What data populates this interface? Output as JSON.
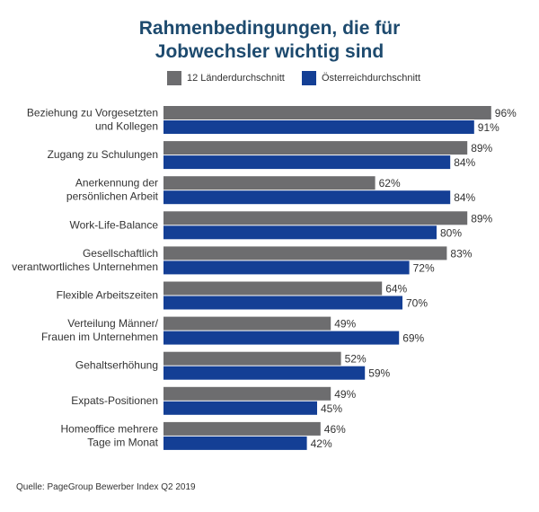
{
  "title_line1": "Rahmenbedingungen, die für",
  "title_line2": "Jobwechsler wichtig sind",
  "source": "Quelle: PageGroup Bewerber Index Q2 2019",
  "colors": {
    "series1": "#6d6d6f",
    "series2": "#143f95",
    "title": "#1d4a6e",
    "text": "#333333"
  },
  "chart_data": {
    "type": "bar",
    "orientation": "horizontal",
    "categories": [
      [
        "Beziehung zu Vorgesetzten",
        "und Kollegen"
      ],
      [
        "Zugang zu Schulungen"
      ],
      [
        "Anerkennung der",
        "persönlichen Arbeit"
      ],
      [
        "Work-Life-Balance"
      ],
      [
        "Gesellschaftlich",
        "verantwortliches Unternehmen"
      ],
      [
        "Flexible  Arbeitszeiten"
      ],
      [
        "Verteilung Männer/",
        "Frauen im Unternehmen"
      ],
      [
        "Gehaltserhöhung"
      ],
      [
        "Expats-Positionen"
      ],
      [
        "Homeoffice mehrere",
        "Tage im Monat"
      ]
    ],
    "series": [
      {
        "name": "12 Länderdurchschnitt",
        "values": [
          96,
          89,
          62,
          89,
          83,
          64,
          49,
          52,
          49,
          46
        ],
        "labels": [
          "96%",
          "89%",
          "62%",
          "89%",
          "83%",
          "64%",
          "49%",
          "52%",
          "49%",
          "46%"
        ]
      },
      {
        "name": "Österreichdurchschnitt",
        "values": [
          91,
          84,
          84,
          80,
          72,
          70,
          69,
          59,
          45,
          42
        ],
        "labels": [
          "91%",
          "84%",
          "84%",
          "80%",
          "72%",
          "70%",
          "69%",
          "59%",
          "45%",
          "42%"
        ]
      }
    ],
    "xlim": [
      0,
      100
    ],
    "grid": false,
    "legend_position": "top"
  }
}
